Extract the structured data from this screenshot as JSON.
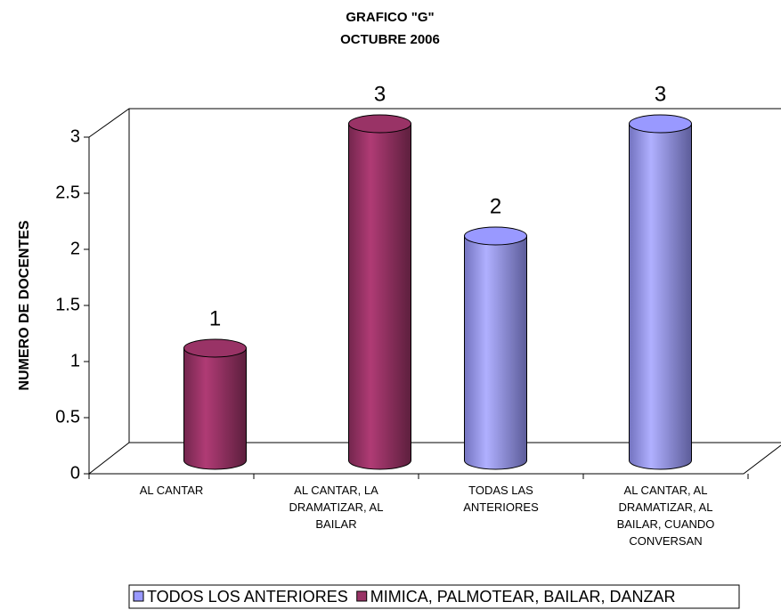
{
  "chart_data": {
    "type": "bar3d",
    "title": "GRAFICO \"G\"",
    "subtitle": "OCTUBRE 2006",
    "y_label": "NUMERO DE DOCENTES",
    "categories": [
      "AL CANTAR",
      "AL CANTAR, LA DRAMATIZAR, AL BAILAR",
      "TODAS LAS ANTERIORES",
      "AL CANTAR, AL DRAMATIZAR, AL BAILAR, CUANDO CONVERSAN"
    ],
    "series": [
      {
        "name": "TODOS LOS ANTERIORES",
        "color": "#9999ff",
        "values": [
          null,
          null,
          2,
          3
        ]
      },
      {
        "name": "MIMICA, PALMOTEAR, BAILAR, DANZAR",
        "color": "#993366",
        "values": [
          1,
          3,
          null,
          null
        ]
      }
    ],
    "ylim": [
      0,
      3
    ],
    "yticks": [
      0,
      0.5,
      1,
      1.5,
      2,
      2.5,
      3
    ],
    "legend": "bottom"
  }
}
